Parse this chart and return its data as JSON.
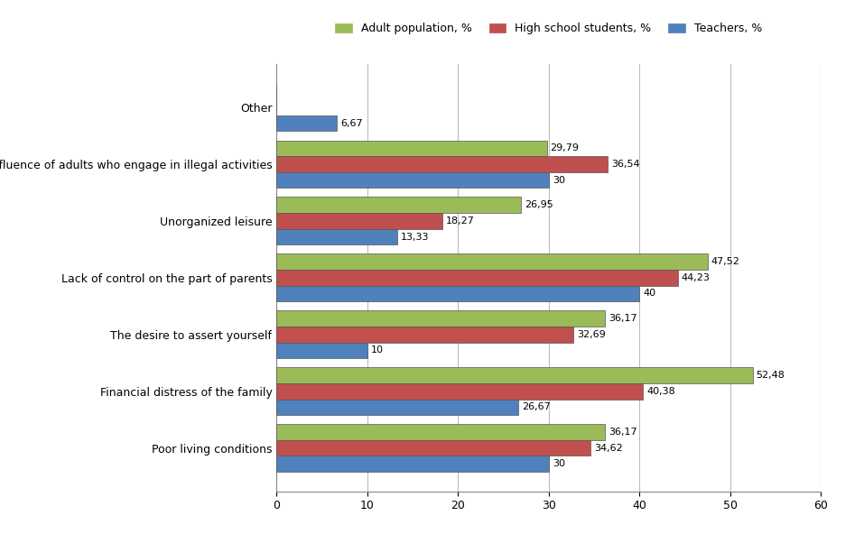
{
  "categories": [
    "Poor living conditions",
    "Financial distress of the family",
    "The desire to assert yourself",
    "Lack of control on the part of parents",
    "Unorganized leisure",
    "Influence of adults who engage in illegal activities",
    "Other"
  ],
  "series": {
    "Adult population, %": [
      36.17,
      52.48,
      36.17,
      47.52,
      26.95,
      29.79,
      0
    ],
    "High school students, %": [
      34.62,
      40.38,
      32.69,
      44.23,
      18.27,
      36.54,
      0
    ],
    "Teachers, %": [
      30,
      26.67,
      10,
      40,
      13.33,
      30,
      6.67
    ]
  },
  "colors": {
    "Adult population, %": "#9BBB59",
    "High school students, %": "#C0504D",
    "Teachers, %": "#4F81BD"
  },
  "xlim": [
    0,
    60
  ],
  "xticks": [
    0,
    10,
    20,
    30,
    40,
    50,
    60
  ],
  "bar_height": 0.28,
  "label_fontsize": 8.0,
  "tick_fontsize": 9,
  "legend_fontsize": 9,
  "background_color": "#FFFFFF",
  "grid_color": "#BBBBBB"
}
